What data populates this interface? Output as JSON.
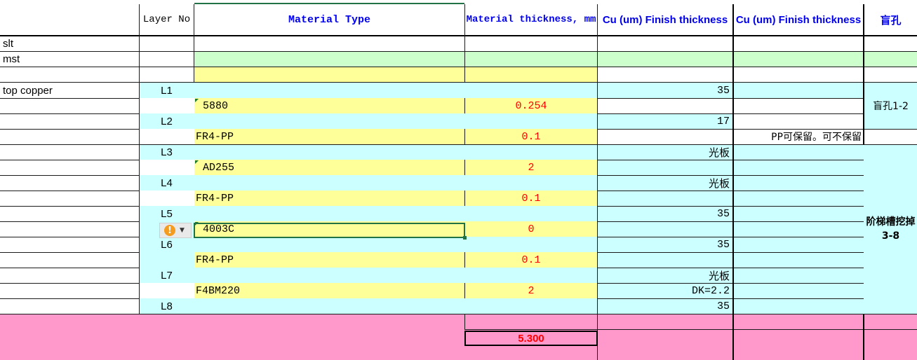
{
  "colors": {
    "cyan": "#ccffff",
    "yellow": "#ffff99",
    "green": "#ccffcc",
    "pink": "#ff99cc",
    "header_blue": "#0000ee",
    "value_red": "#ff0000"
  },
  "header": {
    "layer_no": "Layer No",
    "material_type": "Material Type",
    "material_thickness": "Material thickness, mm",
    "cu_finish_1": "Cu (um) Finish thickness",
    "cu_finish_2": "Cu (um) Finish thickness",
    "blind_hole": "盲孔"
  },
  "rows": {
    "slt": "slt",
    "mst": "mst",
    "top_copper": "top copper"
  },
  "layers": {
    "L1": "L1",
    "L2": "L2",
    "L3": "L3",
    "L4": "L4",
    "L5": "L5",
    "L6": "L6",
    "L7": "L7",
    "L8": "L8"
  },
  "materials": {
    "m1": {
      "type": "5880",
      "thickness": "0.254"
    },
    "m2": {
      "type": "FR4-PP",
      "thickness": "0.1",
      "note": "PP可保留。可不保留"
    },
    "m3": {
      "type": "AD255",
      "thickness": "2"
    },
    "m4": {
      "type": "FR4-PP",
      "thickness": "0.1"
    },
    "m5": {
      "type": "4003C",
      "thickness": "0"
    },
    "m6": {
      "type": "FR4-PP",
      "thickness": "0.1"
    },
    "m7": {
      "type": "F4BM220",
      "thickness": "2",
      "dk": "DK=2.2"
    }
  },
  "copper": {
    "L1": "35",
    "L2": "17",
    "L3": "光板",
    "L4": "光板",
    "L5": "35",
    "L6": "35",
    "L7": "光板",
    "L8": "35"
  },
  "annotations": {
    "blind_hole_range": "盲孔1-2",
    "step_slot": "阶梯槽挖掉3-8"
  },
  "total": {
    "thickness": "5.300"
  }
}
